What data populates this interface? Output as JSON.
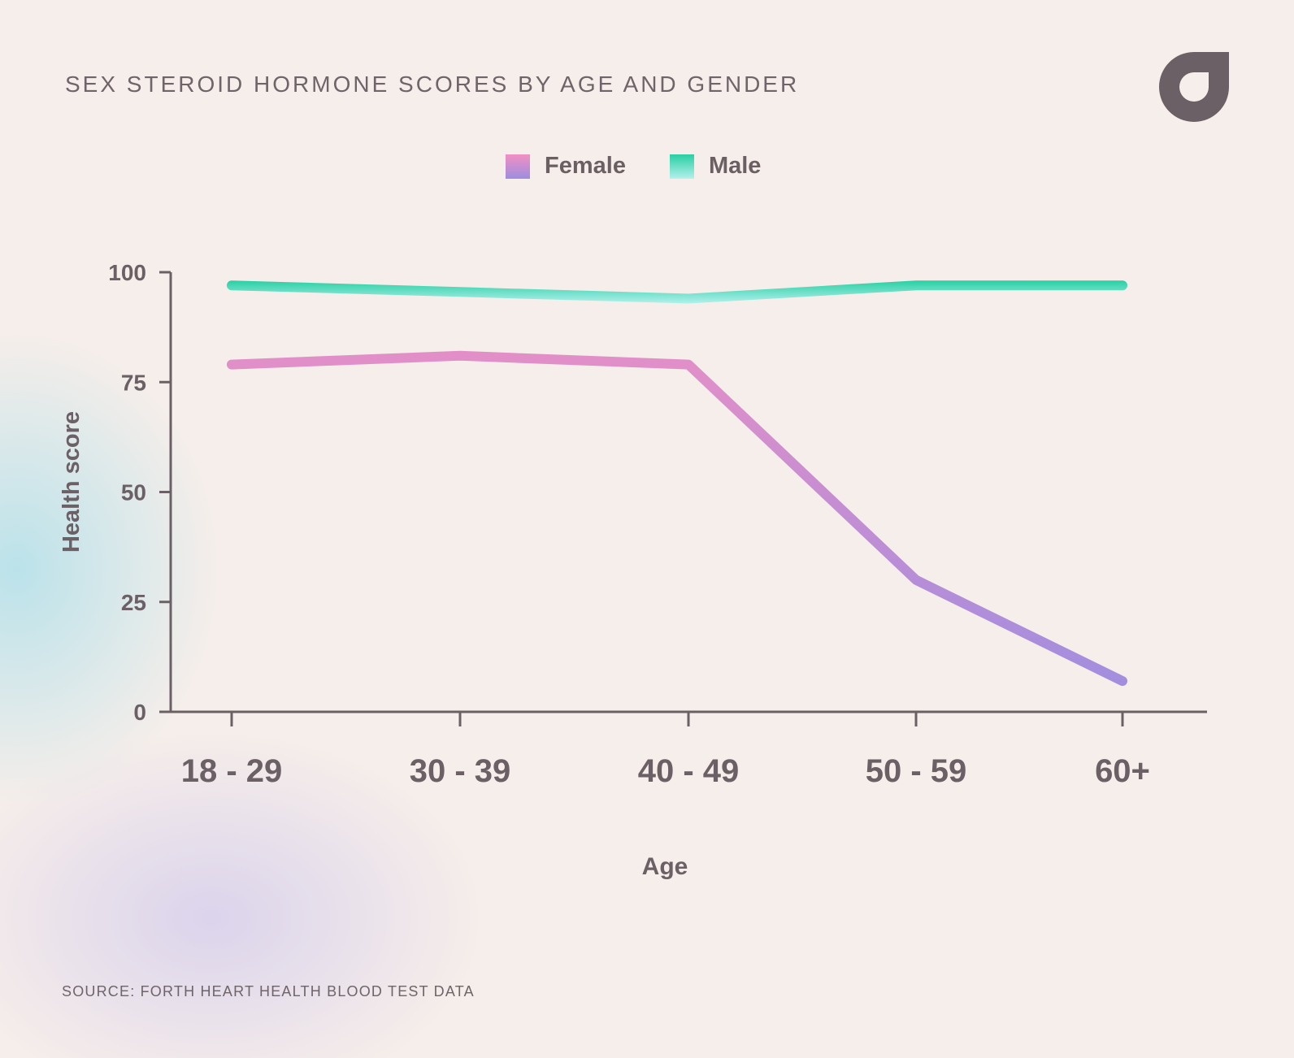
{
  "title": "SEX STEROID HORMONE SCORES BY AGE AND GENDER",
  "source": "SOURCE: FORTH HEART HEALTH BLOOD TEST DATA",
  "logo": {
    "icon": "forth-drop-logo",
    "color": "#6b6065"
  },
  "legend": [
    {
      "label": "Female",
      "colors": [
        "#f28fc3",
        "#9d8ee0"
      ]
    },
    {
      "label": "Male",
      "colors": [
        "#29cfa3",
        "#b3f0ec"
      ]
    }
  ],
  "chart_data": {
    "type": "line",
    "title": "SEX STEROID HORMONE SCORES BY AGE AND GENDER",
    "xlabel": "Age",
    "ylabel": "Health score",
    "categories": [
      "18 - 29",
      "30 - 39",
      "40 - 49",
      "50 - 59",
      "60+"
    ],
    "yticks": [
      "0",
      "25",
      "50",
      "75",
      "100"
    ],
    "ylim": [
      0,
      100
    ],
    "grid": false,
    "legend_position": "top-center",
    "series": [
      {
        "name": "Female",
        "values": [
          79,
          81,
          79,
          30,
          7
        ],
        "color_top": "#f28fc3",
        "color_bottom": "#9d8ee0"
      },
      {
        "name": "Male",
        "values": [
          97,
          95.5,
          94,
          97,
          97
        ],
        "color_top": "#29cfa3",
        "color_bottom": "#b3f0ec"
      }
    ]
  }
}
